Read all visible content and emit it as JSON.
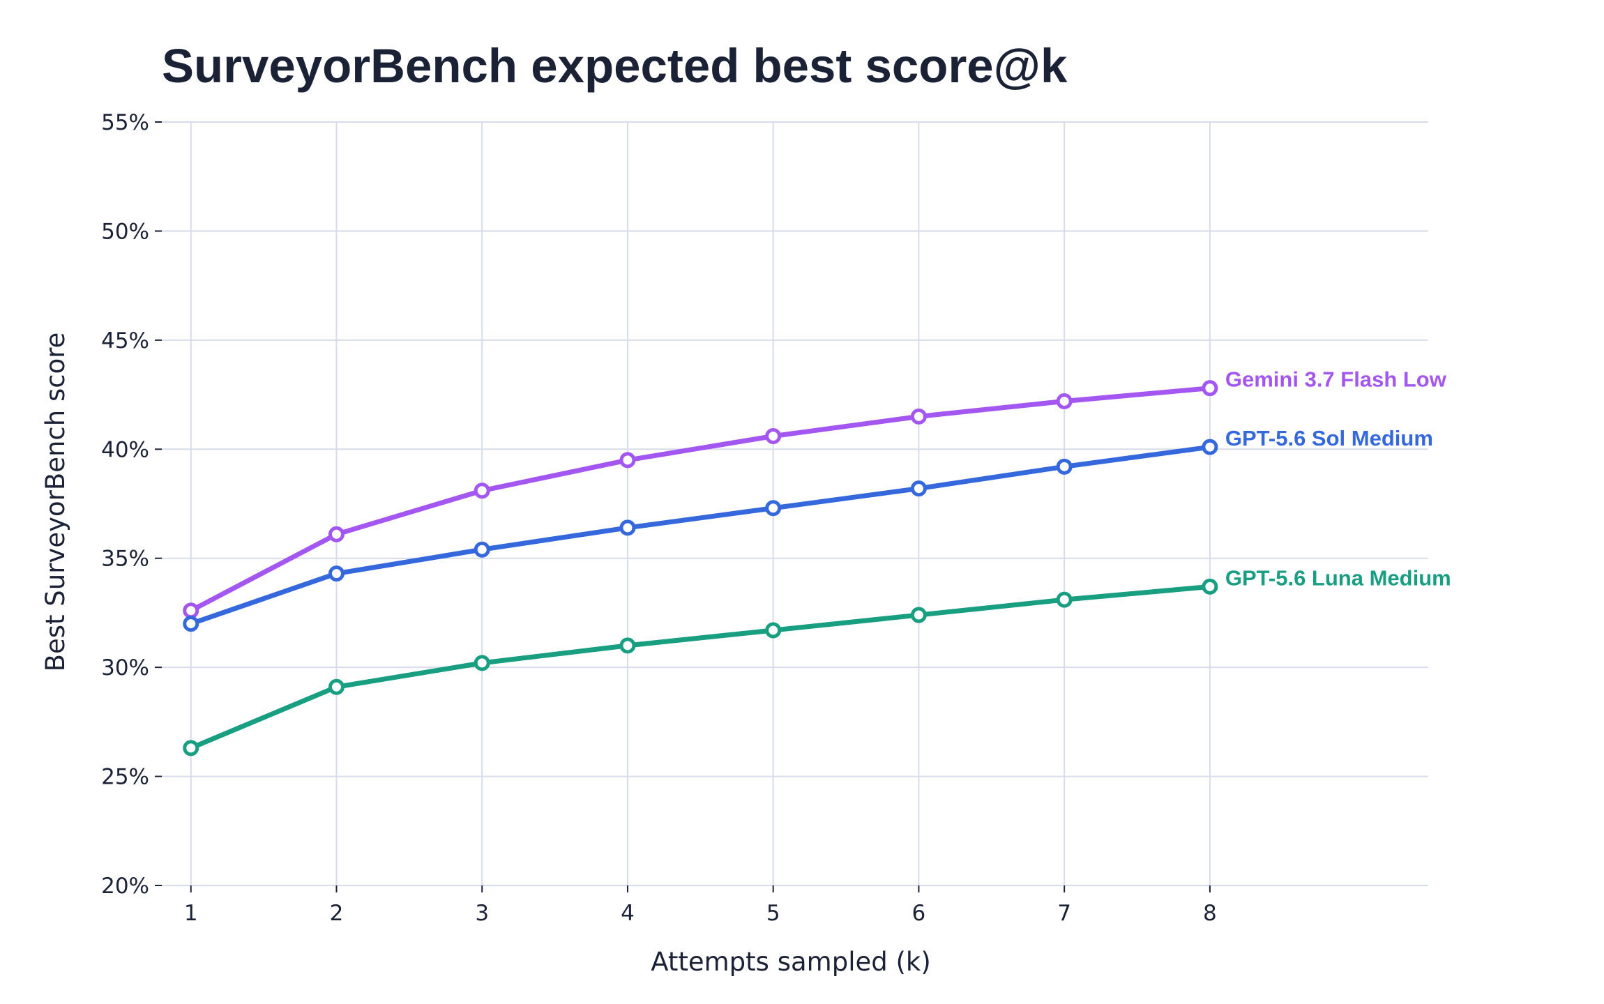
{
  "chart_data": {
    "type": "line",
    "title": "SurveyorBench expected best score@k",
    "xlabel": "Attempts sampled (k)",
    "ylabel": "Best SurveyorBench score",
    "x": [
      1,
      2,
      3,
      4,
      5,
      6,
      7,
      8
    ],
    "x_tick_labels": [
      "1",
      "2",
      "3",
      "4",
      "5",
      "6",
      "7",
      "8"
    ],
    "xlim": [
      0.8,
      9.5
    ],
    "ylim": [
      20,
      55
    ],
    "y_ticks": [
      20,
      25,
      30,
      35,
      40,
      45,
      50,
      55
    ],
    "y_tick_labels": [
      "20%",
      "25%",
      "30%",
      "35%",
      "40%",
      "45%",
      "50%",
      "55%"
    ],
    "grid": true,
    "legend": "inline labels at line ends",
    "series": [
      {
        "name": "Gemini 3.7 Flash Low",
        "color": "#a356f0",
        "values": [
          32.6,
          36.1,
          38.1,
          39.5,
          40.6,
          41.5,
          42.2,
          42.8
        ]
      },
      {
        "name": "GPT-5.6 Sol Medium",
        "color": "#3568dc",
        "values": [
          32.0,
          34.3,
          35.4,
          36.4,
          37.3,
          38.2,
          39.2,
          40.1
        ]
      },
      {
        "name": "GPT-5.6 Luna Medium",
        "color": "#189e80",
        "values": [
          26.3,
          29.1,
          30.2,
          31.0,
          31.7,
          32.4,
          33.1,
          33.7
        ]
      }
    ]
  }
}
